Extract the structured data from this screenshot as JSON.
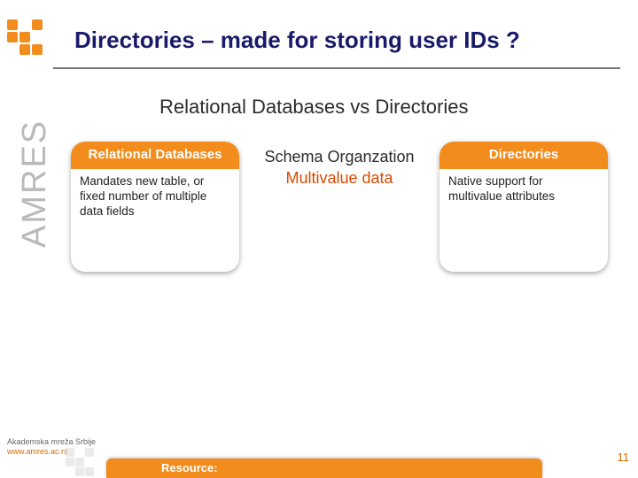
{
  "colors": {
    "accent": "#f28c1c",
    "title": "#1a1a6a",
    "multivalue": "#d84a00",
    "sidebar_text": "#b9b9b9",
    "page_num": "#d66a00",
    "underline": "#7a7a7a",
    "background": "#ffffff"
  },
  "sidebar": {
    "brand": "AMRES"
  },
  "title": "Directories – made for storing user IDs ?",
  "subtitle": "Relational Databases vs Directories",
  "cards": {
    "left": {
      "header": "Relational Databases",
      "body": "Mandates new table, or fixed number of multiple data fields"
    },
    "right": {
      "header": "Directories",
      "body": "Native support for multivalue attributes"
    }
  },
  "middle": {
    "line1": "Schema Organzation",
    "line2": "Multivalue data"
  },
  "footer": {
    "line1": "Akademska mreža Srbije",
    "line2": "www.amres.ac.rs",
    "resource_label": "Resource:"
  },
  "page_number": "11"
}
